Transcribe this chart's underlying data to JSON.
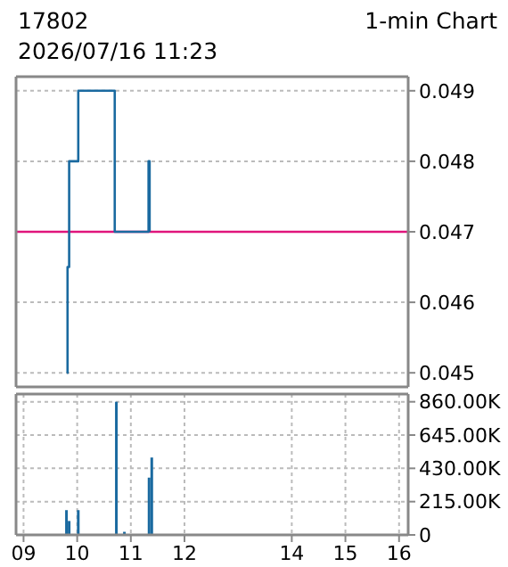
{
  "chart_data": [
    {
      "type": "step",
      "title": "17802",
      "subtitle": "2026/07/16 11:23",
      "annotations": [
        "1-min Chart"
      ],
      "x": [
        9.81,
        9.82,
        9.85,
        10.02,
        10.7,
        11.33,
        11.35
      ],
      "values": [
        0.045,
        0.0465,
        0.048,
        0.049,
        0.047,
        0.048,
        0.047
      ],
      "color": "#1a6aa0",
      "xlim": [
        8.86,
        16.17
      ],
      "xticks": [
        9,
        10,
        11,
        12,
        14,
        15,
        16
      ],
      "ylim": [
        0.0448,
        0.0492
      ],
      "yticks": [
        0.045,
        0.046,
        0.047,
        0.048,
        0.049
      ],
      "ref_lines": [
        {
          "axis": "y",
          "value": 0.047,
          "color": "#e0147c"
        }
      ],
      "grid": true,
      "tick_labels": "y"
    },
    {
      "type": "bar",
      "x": [
        9.8,
        9.85,
        10.02,
        10.73,
        10.88,
        11.34,
        11.39
      ],
      "values": [
        160000,
        90000,
        160000,
        860000,
        20000,
        370000,
        500000
      ],
      "color": "#1a6aa0",
      "xlim": [
        8.86,
        16.17
      ],
      "xticks": [
        {
          "value": 9,
          "label": "09"
        },
        10,
        11,
        12,
        14,
        15,
        16
      ],
      "ylim": [
        0,
        910000
      ],
      "yticks": [
        0,
        {
          "value": 215000,
          "label": "215.00K"
        },
        {
          "value": 430000,
          "label": "430.00K"
        },
        {
          "value": 645000,
          "label": "645.00K"
        },
        {
          "value": 860000,
          "label": "860.00K"
        }
      ],
      "grid": true
    }
  ]
}
